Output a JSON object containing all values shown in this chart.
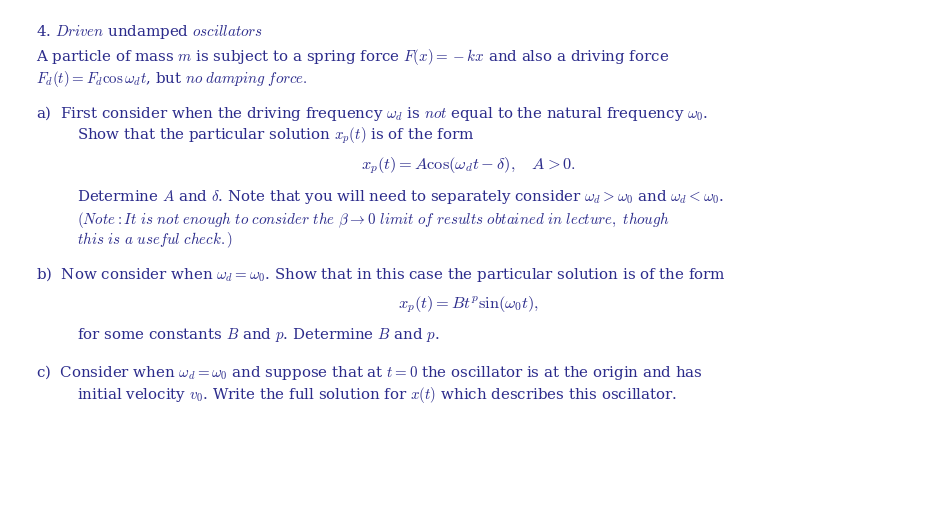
{
  "background_color": "#ffffff",
  "text_color": "#2b2b8b",
  "figsize": [
    9.36,
    5.19
  ],
  "dpi": 100,
  "fs": 10.8
}
